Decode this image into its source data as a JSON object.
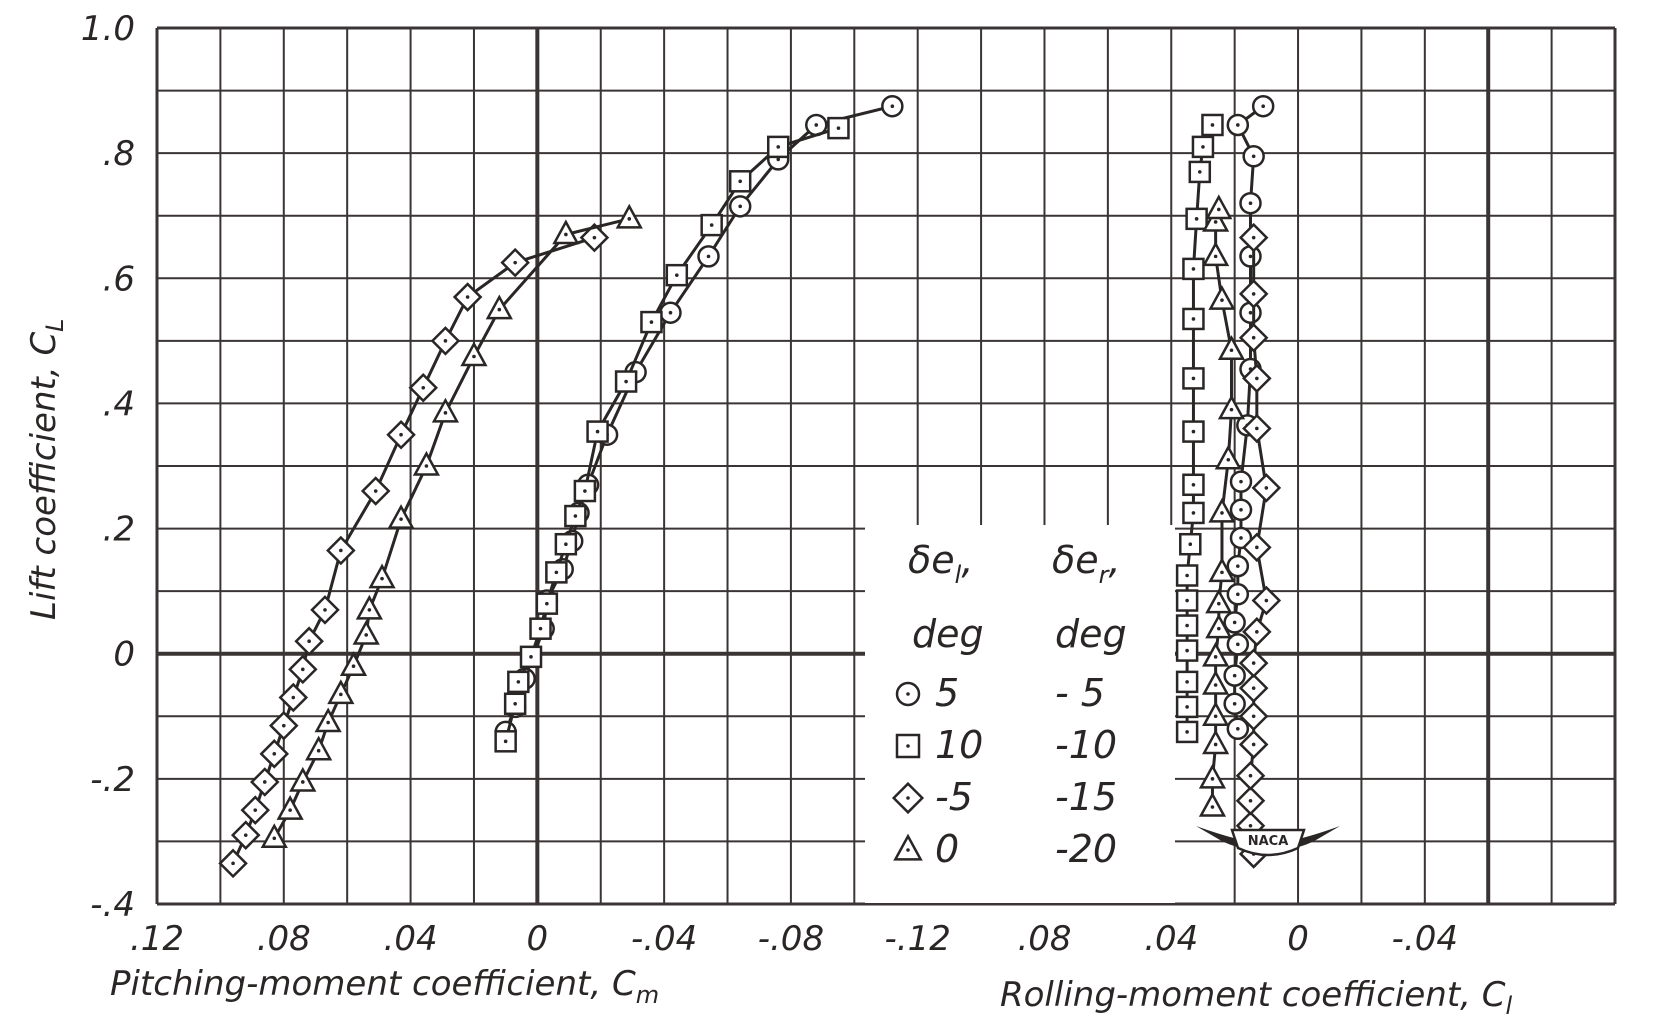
{
  "chart_data": [
    {
      "type": "line",
      "title": "",
      "xlabel": "Pitching-moment coefficient, Cm",
      "ylabel": "Lift coefficient, CL",
      "xlim": [
        0.12,
        -0.12
      ],
      "ylim": [
        -0.4,
        1.0
      ],
      "x_tick_labels": [
        ".12",
        ".08",
        ".04",
        "0",
        "-.04",
        "-.08",
        "-.12"
      ],
      "x_tick_values": [
        0.12,
        0.08,
        0.04,
        0,
        -0.04,
        -0.08,
        -0.12
      ],
      "y_tick_labels": [
        "-.4",
        "-.2",
        "0",
        ".2",
        ".4",
        ".6",
        ".8",
        "1.0"
      ],
      "y_tick_values": [
        -0.4,
        -0.2,
        0,
        0.2,
        0.4,
        0.6,
        0.8,
        1.0
      ],
      "grid": true,
      "series": [
        {
          "marker": "circle",
          "points": [
            [
              0.01,
              -0.125
            ],
            [
              0.007,
              -0.085
            ],
            [
              0.004,
              -0.04
            ],
            [
              -0.002,
              0.04
            ],
            [
              -0.003,
              0.085
            ],
            [
              -0.008,
              0.135
            ],
            [
              -0.011,
              0.18
            ],
            [
              -0.013,
              0.225
            ],
            [
              -0.016,
              0.27
            ],
            [
              -0.022,
              0.35
            ],
            [
              -0.031,
              0.45
            ],
            [
              -0.042,
              0.545
            ],
            [
              -0.054,
              0.635
            ],
            [
              -0.064,
              0.715
            ],
            [
              -0.076,
              0.79
            ],
            [
              -0.088,
              0.845
            ],
            [
              -0.112,
              0.875
            ]
          ]
        },
        {
          "marker": "square",
          "points": [
            [
              0.01,
              -0.14
            ],
            [
              0.007,
              -0.08
            ],
            [
              0.006,
              -0.045
            ],
            [
              0.002,
              -0.005
            ],
            [
              -0.001,
              0.04
            ],
            [
              -0.003,
              0.08
            ],
            [
              -0.006,
              0.13
            ],
            [
              -0.009,
              0.175
            ],
            [
              -0.012,
              0.22
            ],
            [
              -0.015,
              0.26
            ],
            [
              -0.019,
              0.355
            ],
            [
              -0.028,
              0.435
            ],
            [
              -0.036,
              0.53
            ],
            [
              -0.044,
              0.605
            ],
            [
              -0.055,
              0.685
            ],
            [
              -0.064,
              0.755
            ],
            [
              -0.076,
              0.81
            ],
            [
              -0.095,
              0.84
            ]
          ]
        },
        {
          "marker": "diamond",
          "points": [
            [
              0.096,
              -0.335
            ],
            [
              0.092,
              -0.29
            ],
            [
              0.089,
              -0.25
            ],
            [
              0.086,
              -0.205
            ],
            [
              0.083,
              -0.16
            ],
            [
              0.08,
              -0.115
            ],
            [
              0.077,
              -0.07
            ],
            [
              0.074,
              -0.025
            ],
            [
              0.072,
              0.02
            ],
            [
              0.067,
              0.07
            ],
            [
              0.062,
              0.165
            ],
            [
              0.051,
              0.26
            ],
            [
              0.043,
              0.35
            ],
            [
              0.036,
              0.425
            ],
            [
              0.029,
              0.5
            ],
            [
              0.022,
              0.57
            ],
            [
              0.007,
              0.625
            ],
            [
              -0.018,
              0.665
            ]
          ]
        },
        {
          "marker": "triangle",
          "points": [
            [
              0.083,
              -0.295
            ],
            [
              0.078,
              -0.25
            ],
            [
              0.074,
              -0.205
            ],
            [
              0.069,
              -0.155
            ],
            [
              0.066,
              -0.11
            ],
            [
              0.062,
              -0.065
            ],
            [
              0.058,
              -0.02
            ],
            [
              0.054,
              0.03
            ],
            [
              0.053,
              0.07
            ],
            [
              0.049,
              0.12
            ],
            [
              0.043,
              0.215
            ],
            [
              0.035,
              0.3
            ],
            [
              0.029,
              0.385
            ],
            [
              0.02,
              0.475
            ],
            [
              0.012,
              0.55
            ],
            [
              -0.009,
              0.67
            ],
            [
              -0.029,
              0.695
            ]
          ]
        }
      ]
    },
    {
      "type": "line",
      "title": "",
      "xlabel": "Rolling-moment coefficient, Cl",
      "ylabel": "Lift coefficient, CL",
      "xlim": [
        0.1,
        -0.04
      ],
      "ylim": [
        -0.4,
        1.0
      ],
      "x_tick_labels": [
        ".08",
        ".04",
        "0",
        "-.04"
      ],
      "x_tick_values": [
        0.08,
        0.04,
        0,
        -0.04
      ],
      "grid": true,
      "series": [
        {
          "marker": "circle",
          "points": [
            [
              0.019,
              -0.12
            ],
            [
              0.02,
              -0.08
            ],
            [
              0.02,
              -0.035
            ],
            [
              0.019,
              0.015
            ],
            [
              0.02,
              0.05
            ],
            [
              0.019,
              0.095
            ],
            [
              0.019,
              0.14
            ],
            [
              0.018,
              0.185
            ],
            [
              0.018,
              0.23
            ],
            [
              0.018,
              0.275
            ],
            [
              0.016,
              0.365
            ],
            [
              0.015,
              0.455
            ],
            [
              0.015,
              0.545
            ],
            [
              0.015,
              0.635
            ],
            [
              0.015,
              0.72
            ],
            [
              0.014,
              0.795
            ],
            [
              0.019,
              0.845
            ],
            [
              0.011,
              0.875
            ]
          ]
        },
        {
          "marker": "square",
          "points": [
            [
              0.035,
              -0.125
            ],
            [
              0.035,
              -0.085
            ],
            [
              0.035,
              -0.045
            ],
            [
              0.035,
              0.005
            ],
            [
              0.035,
              0.045
            ],
            [
              0.035,
              0.085
            ],
            [
              0.035,
              0.125
            ],
            [
              0.034,
              0.175
            ],
            [
              0.033,
              0.225
            ],
            [
              0.033,
              0.27
            ],
            [
              0.033,
              0.355
            ],
            [
              0.033,
              0.44
            ],
            [
              0.033,
              0.535
            ],
            [
              0.033,
              0.615
            ],
            [
              0.032,
              0.695
            ],
            [
              0.031,
              0.77
            ],
            [
              0.03,
              0.81
            ],
            [
              0.027,
              0.845
            ]
          ]
        },
        {
          "marker": "diamond",
          "points": [
            [
              0.014,
              -0.32
            ],
            [
              0.015,
              -0.275
            ],
            [
              0.015,
              -0.235
            ],
            [
              0.015,
              -0.195
            ],
            [
              0.014,
              -0.145
            ],
            [
              0.014,
              -0.1
            ],
            [
              0.014,
              -0.055
            ],
            [
              0.014,
              -0.015
            ],
            [
              0.013,
              0.035
            ],
            [
              0.01,
              0.085
            ],
            [
              0.013,
              0.17
            ],
            [
              0.01,
              0.265
            ],
            [
              0.013,
              0.36
            ],
            [
              0.013,
              0.44
            ],
            [
              0.014,
              0.505
            ],
            [
              0.014,
              0.575
            ],
            [
              0.014,
              0.665
            ]
          ]
        },
        {
          "marker": "triangle",
          "points": [
            [
              0.027,
              -0.245
            ],
            [
              0.027,
              -0.2
            ],
            [
              0.026,
              -0.145
            ],
            [
              0.026,
              -0.1
            ],
            [
              0.026,
              -0.05
            ],
            [
              0.026,
              -0.005
            ],
            [
              0.025,
              0.04
            ],
            [
              0.025,
              0.08
            ],
            [
              0.024,
              0.13
            ],
            [
              0.024,
              0.225
            ],
            [
              0.022,
              0.31
            ],
            [
              0.021,
              0.39
            ],
            [
              0.021,
              0.485
            ],
            [
              0.024,
              0.565
            ],
            [
              0.026,
              0.635
            ],
            [
              0.026,
              0.69
            ],
            [
              0.025,
              0.71
            ]
          ]
        }
      ]
    }
  ],
  "legend": {
    "header1": "δe",
    "header1_sub": "l",
    "header1_comma": ",",
    "header2": "δe",
    "header2_sub": "r",
    "header2_comma": ",",
    "unit1": "deg",
    "unit2": "deg",
    "rows": [
      {
        "marker": "circle",
        "left": "5",
        "right": "- 5"
      },
      {
        "marker": "square",
        "left": "10",
        "right": "-10"
      },
      {
        "marker": "diamond",
        "left": "-5",
        "right": "-15"
      },
      {
        "marker": "triangle",
        "left": "0",
        "right": "-20"
      }
    ]
  },
  "labels": {
    "y_axis_main": "Lift coefficient, C",
    "y_axis_sub": "L",
    "x_axis_left_main": "Pitching-moment coefficient, C",
    "x_axis_left_sub": "m",
    "x_axis_right_main": "Rolling-moment coefficient, C",
    "x_axis_right_sub": "l"
  },
  "logo_text": "NACA",
  "colors": {
    "ink": "#2b2626",
    "grid": "#3a3434",
    "background": "#ffffff"
  }
}
